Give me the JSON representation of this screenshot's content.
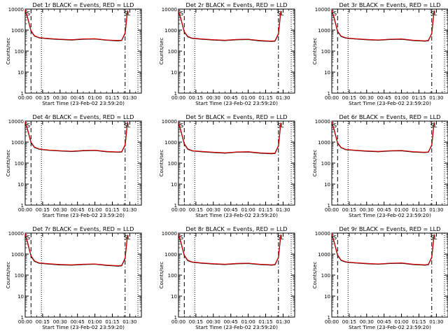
{
  "figure": {
    "xlabel": "Start Time (23-Feb-02 23:59:20)",
    "ylabel": "Counts/sec",
    "x_ticks": [
      "00:00",
      "00:15",
      "00:30",
      "00:45",
      "01:00",
      "01:15",
      "01:30"
    ],
    "y_ticks": [
      "1",
      "10",
      "100",
      "1000",
      "10000"
    ],
    "flag_labels": [
      "S",
      "SL"
    ],
    "colors": {
      "events": "#000000",
      "lld": "#e00000",
      "markers": "#000000"
    }
  },
  "chart_data": [
    {
      "type": "line",
      "title": "Det 1r BLACK = Events, RED = LLD",
      "x_unit": "minutes since start",
      "xlim": [
        0,
        100
      ],
      "ylim": [
        1,
        10000
      ],
      "log_y": true,
      "x": [
        0,
        2,
        5,
        8,
        12,
        20,
        30,
        40,
        50,
        60,
        70,
        80,
        83,
        86,
        88
      ],
      "series": [
        {
          "name": "Events",
          "values": [
            9000,
            4000,
            900,
            520,
            430,
            390,
            360,
            340,
            370,
            380,
            330,
            310,
            320,
            700,
            8000
          ]
        },
        {
          "name": "LLD",
          "values": [
            9500,
            4200,
            950,
            540,
            440,
            400,
            370,
            350,
            380,
            390,
            340,
            320,
            330,
            750,
            8500
          ]
        }
      ],
      "vlines": [
        {
          "x": 5,
          "style": "dashed"
        },
        {
          "x": 14,
          "style": "dotted"
        },
        {
          "x": 86,
          "style": "dashdot"
        },
        {
          "x": 97,
          "style": "dotted"
        }
      ]
    },
    {
      "type": "line",
      "title": "Det 2r BLACK = Events, RED = LLD",
      "x_unit": "minutes since start",
      "xlim": [
        0,
        100
      ],
      "ylim": [
        1,
        10000
      ],
      "log_y": true,
      "x": [
        0,
        2,
        5,
        8,
        12,
        20,
        30,
        40,
        50,
        60,
        70,
        80,
        83,
        86,
        88
      ],
      "series": [
        {
          "name": "Events",
          "values": [
            8000,
            3500,
            800,
            480,
            400,
            370,
            340,
            320,
            350,
            360,
            310,
            290,
            300,
            650,
            7500
          ]
        },
        {
          "name": "LLD",
          "values": [
            8500,
            3700,
            850,
            500,
            410,
            380,
            350,
            330,
            360,
            370,
            320,
            300,
            310,
            700,
            8000
          ]
        }
      ],
      "vlines": [
        {
          "x": 5,
          "style": "dashed"
        },
        {
          "x": 14,
          "style": "dotted"
        },
        {
          "x": 86,
          "style": "dashdot"
        },
        {
          "x": 97,
          "style": "dotted"
        }
      ]
    },
    {
      "type": "line",
      "title": "Det 3r BLACK = Events, RED = LLD",
      "x_unit": "minutes since start",
      "xlim": [
        0,
        100
      ],
      "ylim": [
        1,
        10000
      ],
      "log_y": true,
      "x": [
        0,
        2,
        5,
        8,
        12,
        20,
        30,
        40,
        50,
        60,
        70,
        80,
        83,
        86,
        88
      ],
      "series": [
        {
          "name": "Events",
          "values": [
            8500,
            3800,
            850,
            500,
            420,
            380,
            350,
            330,
            360,
            370,
            320,
            300,
            310,
            680,
            8000
          ]
        },
        {
          "name": "LLD",
          "values": [
            9000,
            4000,
            900,
            520,
            430,
            390,
            360,
            340,
            370,
            380,
            330,
            310,
            320,
            720,
            8500
          ]
        }
      ],
      "vlines": [
        {
          "x": 5,
          "style": "dashed"
        },
        {
          "x": 14,
          "style": "dotted"
        },
        {
          "x": 86,
          "style": "dashdot"
        },
        {
          "x": 97,
          "style": "dotted"
        }
      ]
    },
    {
      "type": "line",
      "title": "Det 4r BLACK = Events, RED = LLD",
      "x_unit": "minutes since start",
      "xlim": [
        0,
        100
      ],
      "ylim": [
        1,
        10000
      ],
      "log_y": true,
      "x": [
        0,
        2,
        5,
        8,
        12,
        20,
        30,
        40,
        50,
        60,
        70,
        80,
        83,
        86,
        88
      ],
      "series": [
        {
          "name": "Events",
          "values": [
            9000,
            4000,
            950,
            560,
            460,
            410,
            380,
            360,
            390,
            400,
            350,
            330,
            340,
            720,
            8500
          ]
        },
        {
          "name": "LLD",
          "values": [
            9500,
            4200,
            1000,
            580,
            470,
            420,
            390,
            370,
            400,
            410,
            360,
            340,
            350,
            760,
            9000
          ]
        }
      ],
      "vlines": [
        {
          "x": 5,
          "style": "dashed"
        },
        {
          "x": 14,
          "style": "dotted"
        },
        {
          "x": 86,
          "style": "dashdot"
        },
        {
          "x": 97,
          "style": "dotted"
        }
      ]
    },
    {
      "type": "line",
      "title": "Det 5r BLACK = Events, RED = LLD",
      "x_unit": "minutes since start",
      "xlim": [
        0,
        100
      ],
      "ylim": [
        1,
        10000
      ],
      "log_y": true,
      "x": [
        0,
        2,
        5,
        8,
        12,
        20,
        30,
        40,
        50,
        60,
        70,
        80,
        83,
        86,
        88
      ],
      "series": [
        {
          "name": "Events",
          "values": [
            8500,
            3500,
            800,
            460,
            380,
            350,
            320,
            300,
            330,
            340,
            300,
            280,
            290,
            650,
            7800
          ]
        },
        {
          "name": "LLD",
          "values": [
            9000,
            3700,
            850,
            480,
            390,
            360,
            330,
            310,
            340,
            350,
            310,
            290,
            300,
            690,
            8200
          ]
        }
      ],
      "vlines": [
        {
          "x": 5,
          "style": "dashed"
        },
        {
          "x": 14,
          "style": "dotted"
        },
        {
          "x": 86,
          "style": "dashdot"
        },
        {
          "x": 97,
          "style": "dotted"
        }
      ]
    },
    {
      "type": "line",
      "title": "Det 6r BLACK = Events, RED = LLD",
      "x_unit": "minutes since start",
      "xlim": [
        0,
        100
      ],
      "ylim": [
        1,
        10000
      ],
      "log_y": true,
      "x": [
        0,
        2,
        5,
        8,
        12,
        20,
        30,
        40,
        50,
        60,
        70,
        80,
        83,
        86,
        88
      ],
      "series": [
        {
          "name": "Events",
          "values": [
            8800,
            3900,
            900,
            540,
            440,
            400,
            370,
            350,
            380,
            390,
            340,
            320,
            330,
            700,
            8200
          ]
        },
        {
          "name": "LLD",
          "values": [
            9200,
            4100,
            950,
            560,
            450,
            410,
            380,
            360,
            390,
            400,
            350,
            330,
            340,
            740,
            8700
          ]
        }
      ],
      "vlines": [
        {
          "x": 5,
          "style": "dashed"
        },
        {
          "x": 14,
          "style": "dotted"
        },
        {
          "x": 86,
          "style": "dashdot"
        },
        {
          "x": 97,
          "style": "dotted"
        }
      ]
    },
    {
      "type": "line",
      "title": "Det 7r BLACK = Events, RED = LLD",
      "x_unit": "minutes since start",
      "xlim": [
        0,
        100
      ],
      "ylim": [
        1,
        10000
      ],
      "log_y": true,
      "x": [
        0,
        2,
        5,
        8,
        12,
        20,
        30,
        40,
        50,
        60,
        70,
        80,
        83,
        86,
        88
      ],
      "series": [
        {
          "name": "Events",
          "values": [
            9000,
            3600,
            800,
            450,
            370,
            340,
            310,
            300,
            320,
            330,
            290,
            270,
            280,
            620,
            7600
          ]
        },
        {
          "name": "LLD",
          "values": [
            9500,
            3800,
            850,
            470,
            380,
            350,
            320,
            310,
            330,
            340,
            300,
            280,
            290,
            660,
            8000
          ]
        }
      ],
      "vlines": [
        {
          "x": 5,
          "style": "dashed"
        },
        {
          "x": 14,
          "style": "dotted"
        },
        {
          "x": 86,
          "style": "dashdot"
        },
        {
          "x": 97,
          "style": "dotted"
        }
      ]
    },
    {
      "type": "line",
      "title": "Det 8r BLACK = Events, RED = LLD",
      "x_unit": "minutes since start",
      "xlim": [
        0,
        100
      ],
      "ylim": [
        1,
        10000
      ],
      "log_y": true,
      "x": [
        0,
        2,
        5,
        8,
        12,
        20,
        30,
        40,
        50,
        60,
        70,
        80,
        83,
        86,
        88
      ],
      "series": [
        {
          "name": "Events",
          "values": [
            8700,
            3700,
            850,
            490,
            410,
            370,
            340,
            320,
            350,
            360,
            320,
            300,
            310,
            680,
            8000
          ]
        },
        {
          "name": "LLD",
          "values": [
            9100,
            3900,
            900,
            510,
            420,
            380,
            350,
            330,
            360,
            370,
            330,
            310,
            320,
            720,
            8400
          ]
        }
      ],
      "vlines": [
        {
          "x": 5,
          "style": "dashed"
        },
        {
          "x": 14,
          "style": "dotted"
        },
        {
          "x": 86,
          "style": "dashdot"
        },
        {
          "x": 97,
          "style": "dotted"
        }
      ]
    },
    {
      "type": "line",
      "title": "Det 9r BLACK = Events, RED = LLD",
      "x_unit": "minutes since start",
      "xlim": [
        0,
        100
      ],
      "ylim": [
        1,
        10000
      ],
      "log_y": true,
      "x": [
        0,
        2,
        5,
        8,
        12,
        20,
        30,
        40,
        50,
        60,
        70,
        80,
        83,
        86,
        88
      ],
      "series": [
        {
          "name": "Events",
          "values": [
            8800,
            3800,
            880,
            500,
            420,
            380,
            350,
            330,
            360,
            370,
            320,
            300,
            310,
            690,
            8100
          ]
        },
        {
          "name": "LLD",
          "values": [
            9200,
            4000,
            930,
            520,
            430,
            390,
            360,
            340,
            370,
            380,
            330,
            310,
            320,
            730,
            8600
          ]
        }
      ],
      "vlines": [
        {
          "x": 5,
          "style": "dashed"
        },
        {
          "x": 14,
          "style": "dotted"
        },
        {
          "x": 86,
          "style": "dashdot"
        },
        {
          "x": 97,
          "style": "dotted"
        }
      ]
    }
  ]
}
